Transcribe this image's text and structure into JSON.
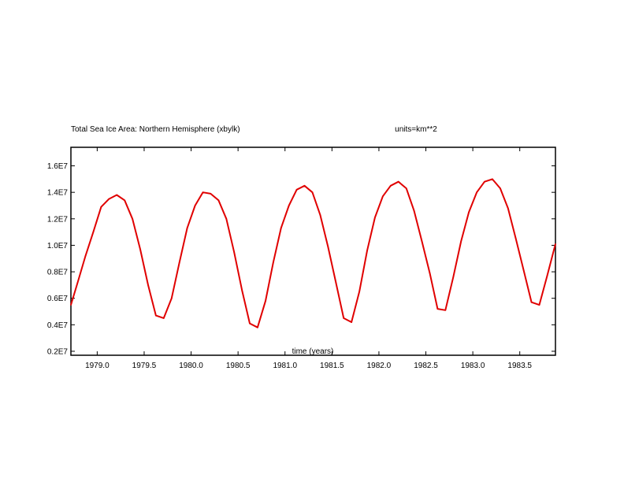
{
  "chart_data": {
    "type": "line",
    "title_left": "Total Sea Ice Area: Northern Hemisphere (xbylk)",
    "title_right": "units=km**2",
    "xlabel": "time (years)",
    "ylabel": "",
    "xlim": [
      1978.72,
      1983.88
    ],
    "ylim": [
      1700000.0,
      17400000.0
    ],
    "x_ticks": [
      1979.0,
      1979.5,
      1980.0,
      1980.5,
      1981.0,
      1981.5,
      1982.0,
      1982.5,
      1983.0,
      1983.5
    ],
    "x_tick_labels": [
      "1979.0",
      "1979.5",
      "1980.0",
      "1980.5",
      "1981.0",
      "1981.5",
      "1982.0",
      "1982.5",
      "1983.0",
      "1983.5"
    ],
    "y_ticks": [
      2000000,
      4000000,
      6000000,
      8000000,
      10000000,
      12000000,
      14000000,
      16000000
    ],
    "y_tick_labels": [
      "0.2E7",
      "0.4E7",
      "0.6E7",
      "0.8E7",
      "1.0E7",
      "1.2E7",
      "1.4E7",
      "1.6E7"
    ],
    "line_color": "#e00000",
    "grid": false,
    "series": [
      {
        "x": [
          1978.71,
          1978.792,
          1978.875,
          1978.958,
          1979.042,
          1979.125,
          1979.208,
          1979.292,
          1979.375,
          1979.458,
          1979.542,
          1979.625,
          1979.708,
          1979.792,
          1979.875,
          1979.958,
          1980.042,
          1980.125,
          1980.208,
          1980.292,
          1980.375,
          1980.458,
          1980.542,
          1980.625,
          1980.708,
          1980.792,
          1980.875,
          1980.958,
          1981.042,
          1981.125,
          1981.208,
          1981.292,
          1981.375,
          1981.458,
          1981.542,
          1981.625,
          1981.708,
          1981.792,
          1981.875,
          1981.958,
          1982.042,
          1982.125,
          1982.208,
          1982.292,
          1982.375,
          1982.458,
          1982.542,
          1982.625,
          1982.708,
          1982.792,
          1982.875,
          1982.958,
          1983.042,
          1983.125,
          1983.208,
          1983.292,
          1983.375,
          1983.458,
          1983.542,
          1983.625,
          1983.708,
          1983.792,
          1983.88
        ],
        "y": [
          5500000,
          7200000,
          9200000,
          11000000,
          12900000,
          13500000,
          13800000,
          13400000,
          12000000,
          9700000,
          7000000,
          4700000,
          4500000,
          6000000,
          8700000,
          11300000,
          13000000,
          14000000,
          13900000,
          13400000,
          12000000,
          9500000,
          6600000,
          4100000,
          3800000,
          5800000,
          8700000,
          11300000,
          13000000,
          14200000,
          14500000,
          14000000,
          12300000,
          9900000,
          7200000,
          4500000,
          4200000,
          6500000,
          9600000,
          12100000,
          13700000,
          14500000,
          14800000,
          14300000,
          12600000,
          10300000,
          7900000,
          5200000,
          5100000,
          7600000,
          10300000,
          12500000,
          14000000,
          14800000,
          15000000,
          14300000,
          12800000,
          10500000,
          8100000,
          5700000,
          5500000,
          7700000,
          10100000
        ]
      }
    ]
  }
}
